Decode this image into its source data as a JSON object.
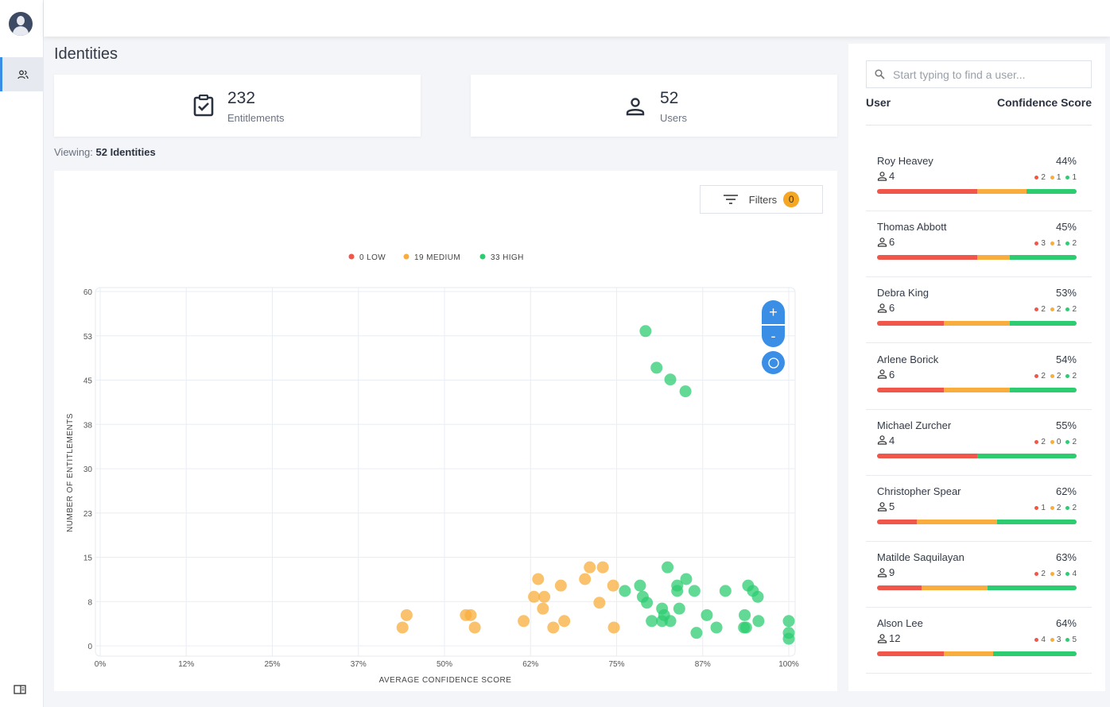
{
  "page": {
    "title": "Identities",
    "viewing_prefix": "Viewing:",
    "viewing_value": "52 Identities"
  },
  "stats": [
    {
      "value": "232",
      "label": "Entitlements",
      "icon": "clipboard-check-icon"
    },
    {
      "value": "52",
      "label": "Users",
      "icon": "user-icon"
    }
  ],
  "filters": {
    "label": "Filters",
    "count": "0"
  },
  "zoom_controls": {
    "plus": "+",
    "minus": "-"
  },
  "colors": {
    "low": "#f0564a",
    "medium": "#f8ad3c",
    "high": "#2ecc71",
    "accent": "#3a8ee6"
  },
  "chart_data": {
    "type": "scatter",
    "xlabel": "AVERAGE CONFIDENCE SCORE",
    "ylabel": "NUMBER OF ENTITLEMENTS",
    "xlim": [
      0,
      100
    ],
    "ylim": [
      0,
      60
    ],
    "x_ticks": [
      "0%",
      "12%",
      "25%",
      "37%",
      "50%",
      "62%",
      "75%",
      "87%",
      "100%"
    ],
    "y_ticks": [
      "0",
      "8",
      "15",
      "23",
      "30",
      "38",
      "45",
      "53",
      "60"
    ],
    "grid": true,
    "legend": [
      {
        "label": "0 LOW",
        "color": "#f0564a"
      },
      {
        "label": "19 MEDIUM",
        "color": "#f8ad3c"
      },
      {
        "label": "33 HIGH",
        "color": "#2ecc71"
      }
    ],
    "legend_position": "top-center",
    "series": [
      {
        "name": "LOW",
        "color": "#f0564a",
        "points": []
      },
      {
        "name": "MEDIUM",
        "color": "#f8ad3c",
        "points": [
          [
            44.5,
            5.2
          ],
          [
            43.9,
            3.1
          ],
          [
            53.1,
            5.2
          ],
          [
            53.8,
            5.2
          ],
          [
            54.4,
            3.1
          ],
          [
            61.5,
            4.2
          ],
          [
            63.6,
            11.3
          ],
          [
            63.0,
            8.3
          ],
          [
            64.5,
            8.3
          ],
          [
            64.3,
            6.3
          ],
          [
            66.9,
            10.2
          ],
          [
            65.8,
            3.1
          ],
          [
            67.4,
            4.2
          ],
          [
            70.4,
            11.3
          ],
          [
            71.1,
            13.3
          ],
          [
            73.0,
            13.3
          ],
          [
            72.5,
            7.3
          ],
          [
            74.5,
            10.2
          ],
          [
            74.6,
            3.1
          ]
        ]
      },
      {
        "name": "HIGH",
        "color": "#2ecc71",
        "points": [
          [
            79.2,
            53.3
          ],
          [
            80.8,
            47.1
          ],
          [
            82.8,
            45.1
          ],
          [
            85.0,
            43.1
          ],
          [
            82.4,
            13.3
          ],
          [
            85.1,
            11.3
          ],
          [
            83.8,
            10.2
          ],
          [
            78.4,
            10.2
          ],
          [
            76.2,
            9.3
          ],
          [
            78.8,
            8.3
          ],
          [
            83.8,
            9.3
          ],
          [
            86.3,
            9.3
          ],
          [
            90.8,
            9.3
          ],
          [
            94.1,
            10.2
          ],
          [
            94.8,
            9.3
          ],
          [
            95.5,
            8.3
          ],
          [
            79.4,
            7.3
          ],
          [
            84.1,
            6.3
          ],
          [
            81.6,
            6.3
          ],
          [
            81.9,
            5.2
          ],
          [
            88.1,
            5.2
          ],
          [
            93.6,
            5.2
          ],
          [
            80.1,
            4.2
          ],
          [
            81.6,
            4.2
          ],
          [
            82.8,
            4.2
          ],
          [
            95.6,
            4.2
          ],
          [
            100,
            4.2
          ],
          [
            89.5,
            3.1
          ],
          [
            93.5,
            3.1
          ],
          [
            93.8,
            3.1
          ],
          [
            86.6,
            2.2
          ],
          [
            100,
            2.2
          ],
          [
            100,
            1.2
          ]
        ]
      }
    ]
  },
  "user_panel": {
    "search_placeholder": "Start typing to find a user...",
    "col_user": "User",
    "col_score": "Confidence Score",
    "users": [
      {
        "name": "Roy Heavey",
        "score": "44%",
        "count": "4",
        "low": "2",
        "medium": "1",
        "high": "1"
      },
      {
        "name": "Thomas Abbott",
        "score": "45%",
        "count": "6",
        "low": "3",
        "medium": "1",
        "high": "2"
      },
      {
        "name": "Debra King",
        "score": "53%",
        "count": "6",
        "low": "2",
        "medium": "2",
        "high": "2"
      },
      {
        "name": "Arlene Borick",
        "score": "54%",
        "count": "6",
        "low": "2",
        "medium": "2",
        "high": "2"
      },
      {
        "name": "Michael Zurcher",
        "score": "55%",
        "count": "4",
        "low": "2",
        "medium": "0",
        "high": "2"
      },
      {
        "name": "Christopher Spear",
        "score": "62%",
        "count": "5",
        "low": "1",
        "medium": "2",
        "high": "2"
      },
      {
        "name": "Matilde Saquilayan",
        "score": "63%",
        "count": "9",
        "low": "2",
        "medium": "3",
        "high": "4"
      },
      {
        "name": "Alson Lee",
        "score": "64%",
        "count": "12",
        "low": "4",
        "medium": "3",
        "high": "5"
      }
    ]
  }
}
